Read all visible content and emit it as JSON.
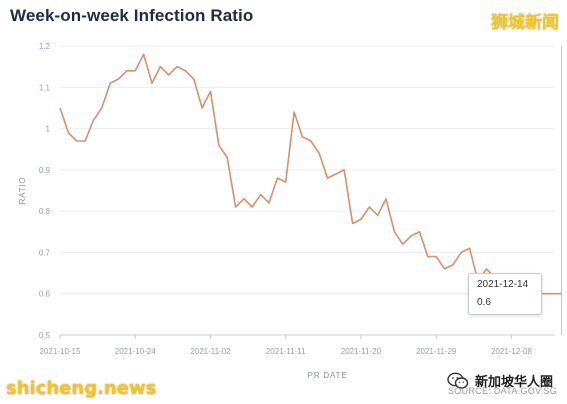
{
  "header": {
    "title": "Week-on-week Infection Ratio"
  },
  "watermarks": {
    "top_right": "狮城新闻",
    "bottom_left": "shicheng.news",
    "bottom_right": "新加坡华人圈"
  },
  "source_text": "SOURCE: DATA.GOV.SG",
  "tooltip": {
    "date": "2021-12-14",
    "value": "0.6"
  },
  "colors": {
    "line": "#d4916e",
    "grid": "#ececf0",
    "hover": "#bfc2cc"
  },
  "chart_data": {
    "type": "line",
    "title": "Week-on-week Infection Ratio",
    "xlabel": "PR DATE",
    "ylabel": "RATIO",
    "x_start": "2021-10-15",
    "x_ticks": [
      "2021-10-15",
      "2021-10-24",
      "2021-11-02",
      "2021-11-11",
      "2021-11-20",
      "2021-11-29",
      "2021-12-08"
    ],
    "ylim": [
      0.5,
      1.2
    ],
    "y_ticks": [
      0.5,
      0.6,
      0.7,
      0.8,
      0.9,
      1,
      1.1,
      1.2
    ],
    "grid": "horizontal",
    "series": [
      {
        "values": [
          1.05,
          0.99,
          0.97,
          0.97,
          1.02,
          1.05,
          1.11,
          1.12,
          1.14,
          1.14,
          1.18,
          1.11,
          1.15,
          1.13,
          1.15,
          1.14,
          1.12,
          1.05,
          1.09,
          0.96,
          0.93,
          0.81,
          0.83,
          0.81,
          0.84,
          0.82,
          0.88,
          0.87,
          1.04,
          0.98,
          0.97,
          0.94,
          0.88,
          0.89,
          0.9,
          0.77,
          0.78,
          0.81,
          0.79,
          0.83,
          0.75,
          0.72,
          0.74,
          0.75,
          0.69,
          0.69,
          0.66,
          0.67,
          0.7,
          0.71,
          0.63,
          0.66,
          0.64,
          0.61,
          0.6,
          0.6,
          0.6,
          0.6,
          0.6,
          0.6,
          0.6
        ]
      }
    ]
  }
}
